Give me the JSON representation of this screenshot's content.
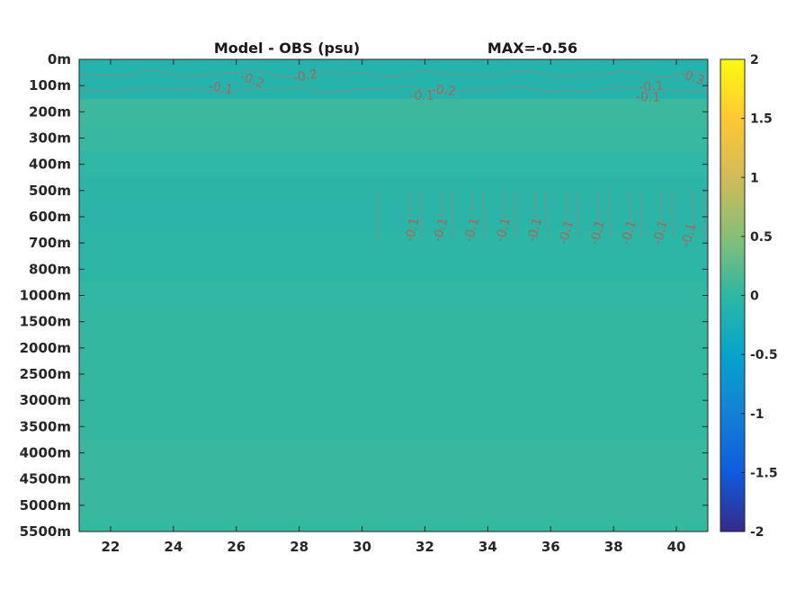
{
  "chart_data": {
    "type": "heatmap",
    "title_left": "Model - OBS (psu)",
    "title_right": "MAX=-0.56",
    "xlim": [
      21,
      41
    ],
    "x_ticks": [
      22,
      24,
      26,
      28,
      30,
      32,
      34,
      36,
      38,
      40
    ],
    "y_tick_labels": [
      "0m",
      "100m",
      "200m",
      "300m",
      "400m",
      "500m",
      "600m",
      "700m",
      "800m",
      "1000m",
      "1500m",
      "2000m",
      "2500m",
      "3000m",
      "3500m",
      "4000m",
      "4500m",
      "5000m",
      "5500m"
    ],
    "colorbar": {
      "range": [
        -2,
        2
      ],
      "ticks": [
        "2",
        "1.5",
        "1",
        "0.5",
        "0",
        "-0.5",
        "-1",
        "-1.5",
        "-2"
      ],
      "colormap": "parula",
      "colors": [
        "#352a87",
        "#0f5cdd",
        "#1481d6",
        "#06a4ca",
        "#2eb7a4",
        "#87bf77",
        "#d1bb59",
        "#fec832",
        "#f9fb0e"
      ]
    },
    "depth_profile": [
      {
        "level": "0m",
        "value": -0.12
      },
      {
        "level": "100m",
        "value": -0.1
      },
      {
        "level": "200m",
        "value": 0.08
      },
      {
        "level": "300m",
        "value": 0.05
      },
      {
        "level": "400m",
        "value": 0.0
      },
      {
        "level": "500m",
        "value": -0.04
      },
      {
        "level": "600m",
        "value": -0.05
      },
      {
        "level": "700m",
        "value": -0.03
      },
      {
        "level": "800m",
        "value": -0.02
      },
      {
        "level": "1000m",
        "value": 0.02
      },
      {
        "level": "1500m",
        "value": 0.03
      },
      {
        "level": "2000m",
        "value": 0.03
      },
      {
        "level": "2500m",
        "value": 0.03
      },
      {
        "level": "3000m",
        "value": 0.03
      },
      {
        "level": "3500m",
        "value": 0.03
      },
      {
        "level": "4000m",
        "value": 0.06
      },
      {
        "level": "4500m",
        "value": 0.06
      },
      {
        "level": "5000m",
        "value": 0.06
      },
      {
        "level": "5500m",
        "value": 0.04
      }
    ],
    "contour_labels": [
      {
        "text": "-0.1",
        "x": 25.5,
        "level": 1.1,
        "angle": 10
      },
      {
        "text": "-0.2",
        "x": 26.5,
        "level": 0.8,
        "angle": 20
      },
      {
        "text": "-0.2",
        "x": 28.2,
        "level": 0.65,
        "angle": -10
      },
      {
        "text": "-0.1",
        "x": 31.9,
        "level": 1.4,
        "angle": 0
      },
      {
        "text": "-0.2",
        "x": 32.6,
        "level": 1.2,
        "angle": 5
      },
      {
        "text": "-0.1",
        "x": 39.1,
        "level": 1.45,
        "angle": 0
      },
      {
        "text": "-0.1",
        "x": 39.2,
        "level": 1.05,
        "angle": -5
      },
      {
        "text": "-0.3",
        "x": 40.5,
        "level": 0.7,
        "angle": 20
      },
      {
        "text": "-0.1",
        "x": 31.6,
        "level": 6.5,
        "angle": -75
      },
      {
        "text": "-0.1",
        "x": 32.5,
        "level": 6.5,
        "angle": -75
      },
      {
        "text": "-0.1",
        "x": 33.5,
        "level": 6.5,
        "angle": -75
      },
      {
        "text": "-0.1",
        "x": 34.5,
        "level": 6.5,
        "angle": -75
      },
      {
        "text": "-0.1",
        "x": 35.5,
        "level": 6.5,
        "angle": -75
      },
      {
        "text": "-0.1",
        "x": 36.5,
        "level": 6.6,
        "angle": -75
      },
      {
        "text": "-0.1",
        "x": 37.5,
        "level": 6.6,
        "angle": -75
      },
      {
        "text": "-0.1",
        "x": 38.5,
        "level": 6.6,
        "angle": -75
      },
      {
        "text": "-0.1",
        "x": 39.5,
        "level": 6.6,
        "angle": -75
      },
      {
        "text": "-0.1",
        "x": 40.4,
        "level": 6.7,
        "angle": -75
      }
    ]
  }
}
